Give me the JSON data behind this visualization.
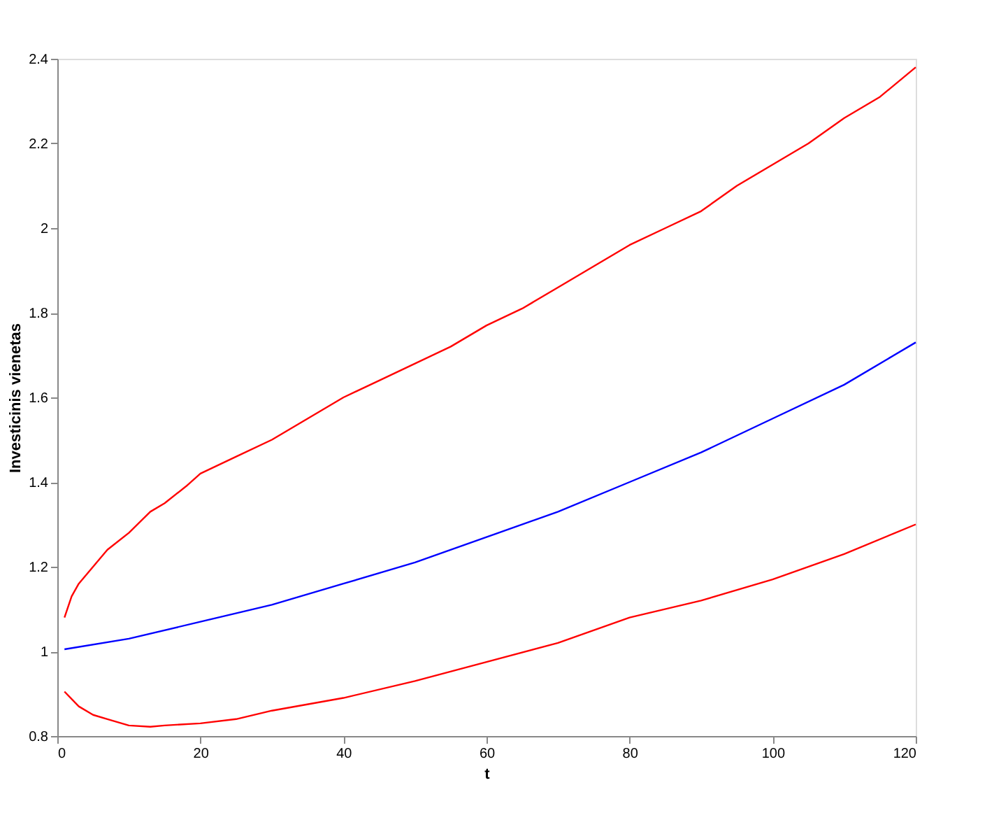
{
  "chart_data": {
    "type": "line",
    "xlabel": "t",
    "ylabel": "Investicinis vienetas",
    "xlim": [
      0,
      120
    ],
    "xticks": [
      0,
      20,
      40,
      60,
      80,
      100,
      120
    ],
    "ylim": [
      0.8,
      2.4
    ],
    "yticks": [
      0.8,
      1,
      1.2,
      1.4,
      1.6,
      1.8,
      2,
      2.2,
      2.4
    ],
    "grid": false,
    "series": [
      {
        "color": "#ff0000",
        "x": [
          1,
          2,
          3,
          5,
          7,
          10,
          13,
          15,
          18,
          20,
          25,
          30,
          35,
          40,
          45,
          50,
          55,
          60,
          65,
          70,
          75,
          80,
          85,
          90,
          95,
          100,
          105,
          110,
          115,
          120
        ],
        "values": [
          1.08,
          1.13,
          1.16,
          1.2,
          1.24,
          1.28,
          1.33,
          1.35,
          1.39,
          1.42,
          1.46,
          1.5,
          1.55,
          1.6,
          1.64,
          1.68,
          1.72,
          1.77,
          1.81,
          1.86,
          1.91,
          1.96,
          2.0,
          2.04,
          2.1,
          2.15,
          2.2,
          2.26,
          2.31,
          2.38
        ]
      },
      {
        "color": "#0000ff",
        "x": [
          1,
          10,
          20,
          30,
          40,
          50,
          60,
          70,
          80,
          90,
          100,
          110,
          120
        ],
        "values": [
          1.005,
          1.03,
          1.07,
          1.11,
          1.16,
          1.21,
          1.27,
          1.33,
          1.4,
          1.47,
          1.55,
          1.63,
          1.73
        ]
      },
      {
        "color": "#ff0000",
        "x": [
          1,
          3,
          5,
          7,
          10,
          13,
          15,
          20,
          25,
          30,
          40,
          50,
          60,
          70,
          80,
          90,
          100,
          110,
          120
        ],
        "values": [
          0.905,
          0.87,
          0.85,
          0.84,
          0.825,
          0.822,
          0.825,
          0.83,
          0.84,
          0.86,
          0.89,
          0.93,
          0.975,
          1.02,
          1.08,
          1.12,
          1.17,
          1.23,
          1.3
        ]
      }
    ]
  }
}
